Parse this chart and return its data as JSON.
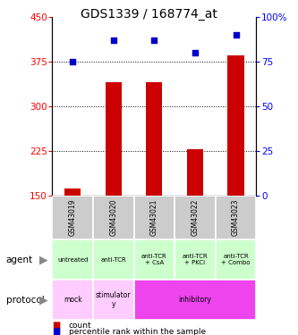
{
  "title": "GDS1339 / 168774_at",
  "samples": [
    "GSM43019",
    "GSM43020",
    "GSM43021",
    "GSM43022",
    "GSM43023"
  ],
  "count_values": [
    163,
    340,
    340,
    228,
    385
  ],
  "percentile_values": [
    75,
    87,
    87,
    80,
    90
  ],
  "ylim_left": [
    150,
    450
  ],
  "ylim_right": [
    0,
    100
  ],
  "yticks_left": [
    150,
    225,
    300,
    375,
    450
  ],
  "yticks_right": [
    0,
    25,
    50,
    75,
    100
  ],
  "hlines": [
    225,
    300,
    375
  ],
  "bar_color": "#cc0000",
  "scatter_color": "#0000cc",
  "agent_labels": [
    "untreated",
    "anti-TCR",
    "anti-TCR\n+ CsA",
    "anti-TCR\n+ PKCi",
    "anti-TCR\n+ Combo"
  ],
  "agent_bg": "#ccffcc",
  "mock_color": "#ffccff",
  "stimulatory_color": "#ffccff",
  "inhibitory_color": "#ee44ee",
  "sample_bg": "#cccccc",
  "legend_count_color": "#cc0000",
  "legend_pct_color": "#0000cc"
}
